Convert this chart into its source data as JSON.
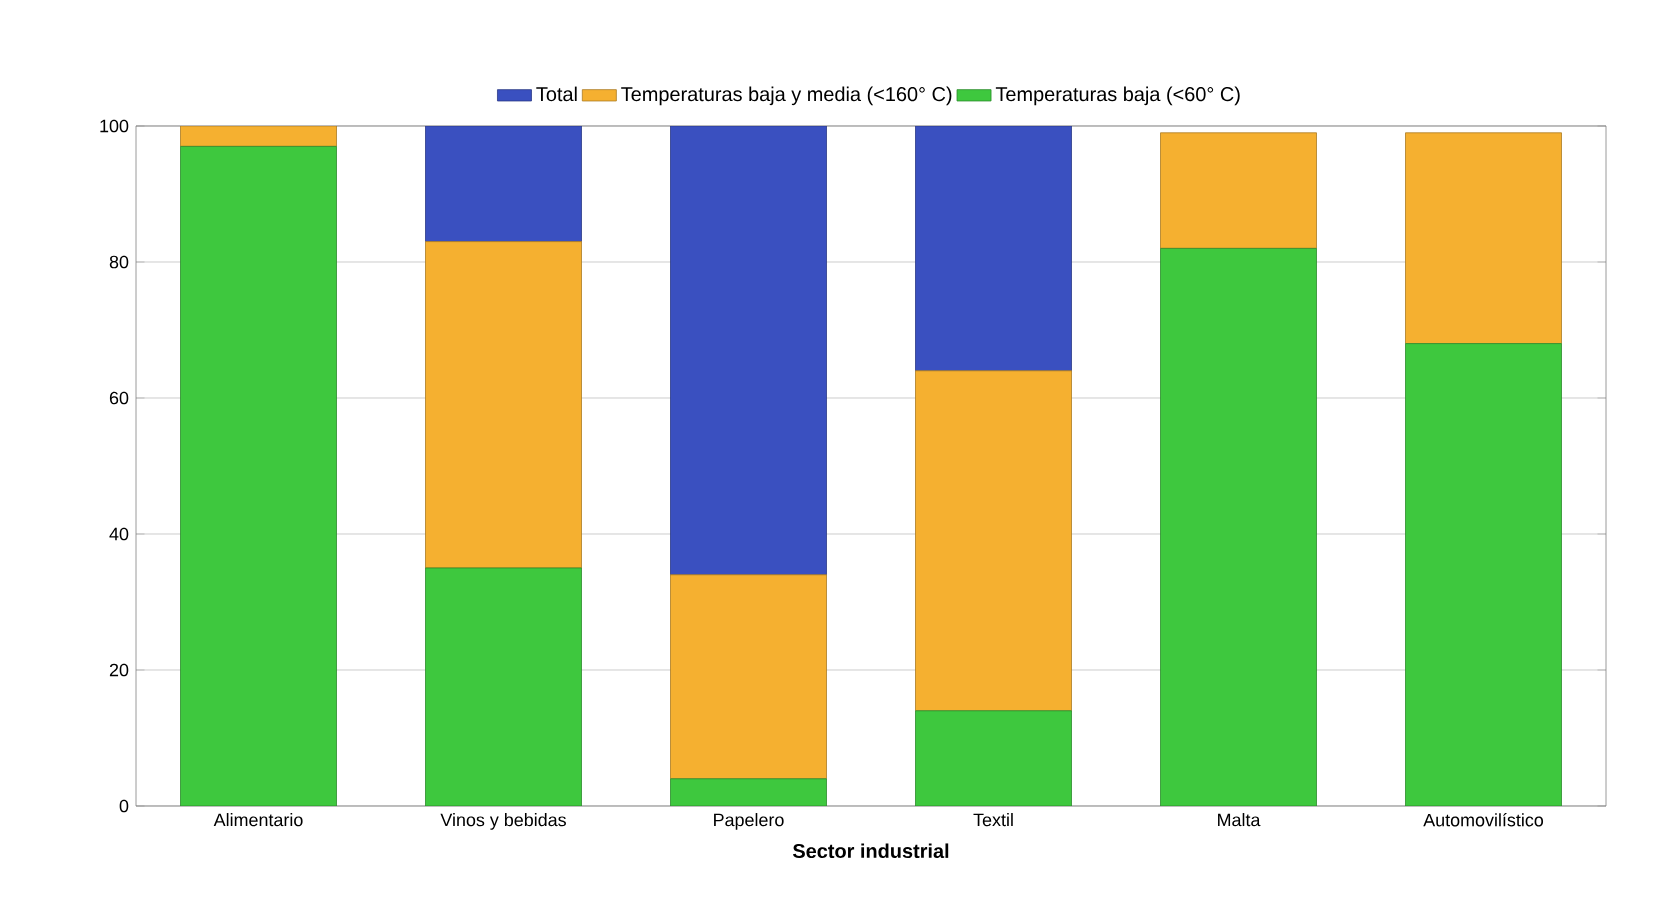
{
  "chart_data": {
    "type": "bar",
    "stacked": true,
    "xlabel": "**Sector industrial**",
    "categories": [
      "Alimentario",
      "Vinos y bebidas",
      "Papelero",
      "Textil",
      "Malta",
      "Automovilístico"
    ],
    "series": [
      {
        "name": "Temperaturas baja (<60° C)",
        "color": "#3ec83e",
        "values": [
          97,
          35,
          4,
          14,
          82,
          68
        ]
      },
      {
        "name": "Temperaturas baja y media (<160° C)",
        "color": "#f5b030",
        "values": [
          3,
          48,
          30,
          50,
          17,
          31
        ]
      },
      {
        "name": "Total",
        "color": "#3a50c0",
        "values": [
          0,
          17,
          66,
          36,
          0,
          0
        ]
      }
    ],
    "ylim": [
      0,
      100
    ],
    "yticks": [
      0,
      20,
      40,
      60,
      80,
      100
    ],
    "grid": "y",
    "legend": "top"
  }
}
